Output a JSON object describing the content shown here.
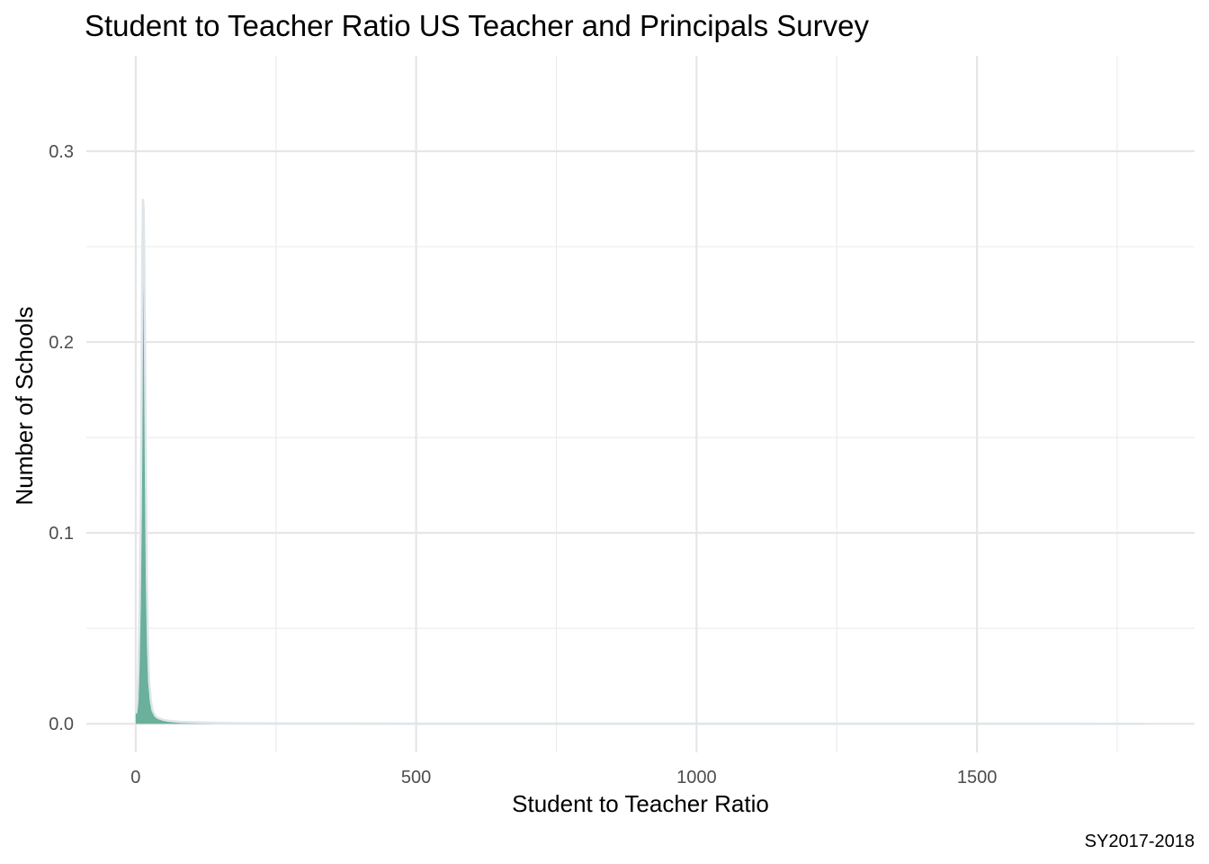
{
  "chart_data": {
    "type": "area",
    "title": "Student to Teacher Ratio US Teacher and Principals Survey",
    "xlabel": "Student to Teacher Ratio",
    "ylabel": "Number of Schools",
    "caption": "SY2017-2018",
    "xlim": [
      -88,
      1888
    ],
    "ylim": [
      -0.015,
      0.35
    ],
    "x_ticks": [
      0,
      500,
      1000,
      1500
    ],
    "x_tick_labels": [
      "0",
      "500",
      "1000",
      "1500"
    ],
    "x_minor_ticks": [
      250,
      750,
      1250,
      1750
    ],
    "y_ticks": [
      0.0,
      0.1,
      0.2,
      0.3
    ],
    "y_tick_labels": [
      "0.0",
      "0.1",
      "0.2",
      "0.3"
    ],
    "y_minor_ticks": [
      0.05,
      0.15,
      0.25
    ],
    "grid": true,
    "legend": "none",
    "series": [
      {
        "fill_color": "#6ab09b",
        "outline_color": "#dde5ea",
        "x": [
          0,
          1,
          3,
          5,
          7,
          9,
          10,
          11,
          12,
          13,
          14,
          15,
          16,
          17,
          18,
          19,
          20,
          22,
          24,
          27,
          30,
          35,
          40,
          50,
          60,
          80,
          100,
          130,
          150,
          200,
          300,
          500,
          800,
          1200,
          1500,
          1800
        ],
        "y": [
          0.006,
          0.006,
          0.012,
          0.03,
          0.06,
          0.11,
          0.15,
          0.2,
          0.25,
          0.275,
          0.27,
          0.25,
          0.22,
          0.18,
          0.14,
          0.105,
          0.075,
          0.04,
          0.022,
          0.012,
          0.007,
          0.004,
          0.003,
          0.002,
          0.0015,
          0.001,
          0.0008,
          0.0006,
          0.0004,
          0.0002,
          0.0001,
          5e-05,
          3e-05,
          2e-05,
          1e-05,
          0.0
        ]
      }
    ]
  }
}
